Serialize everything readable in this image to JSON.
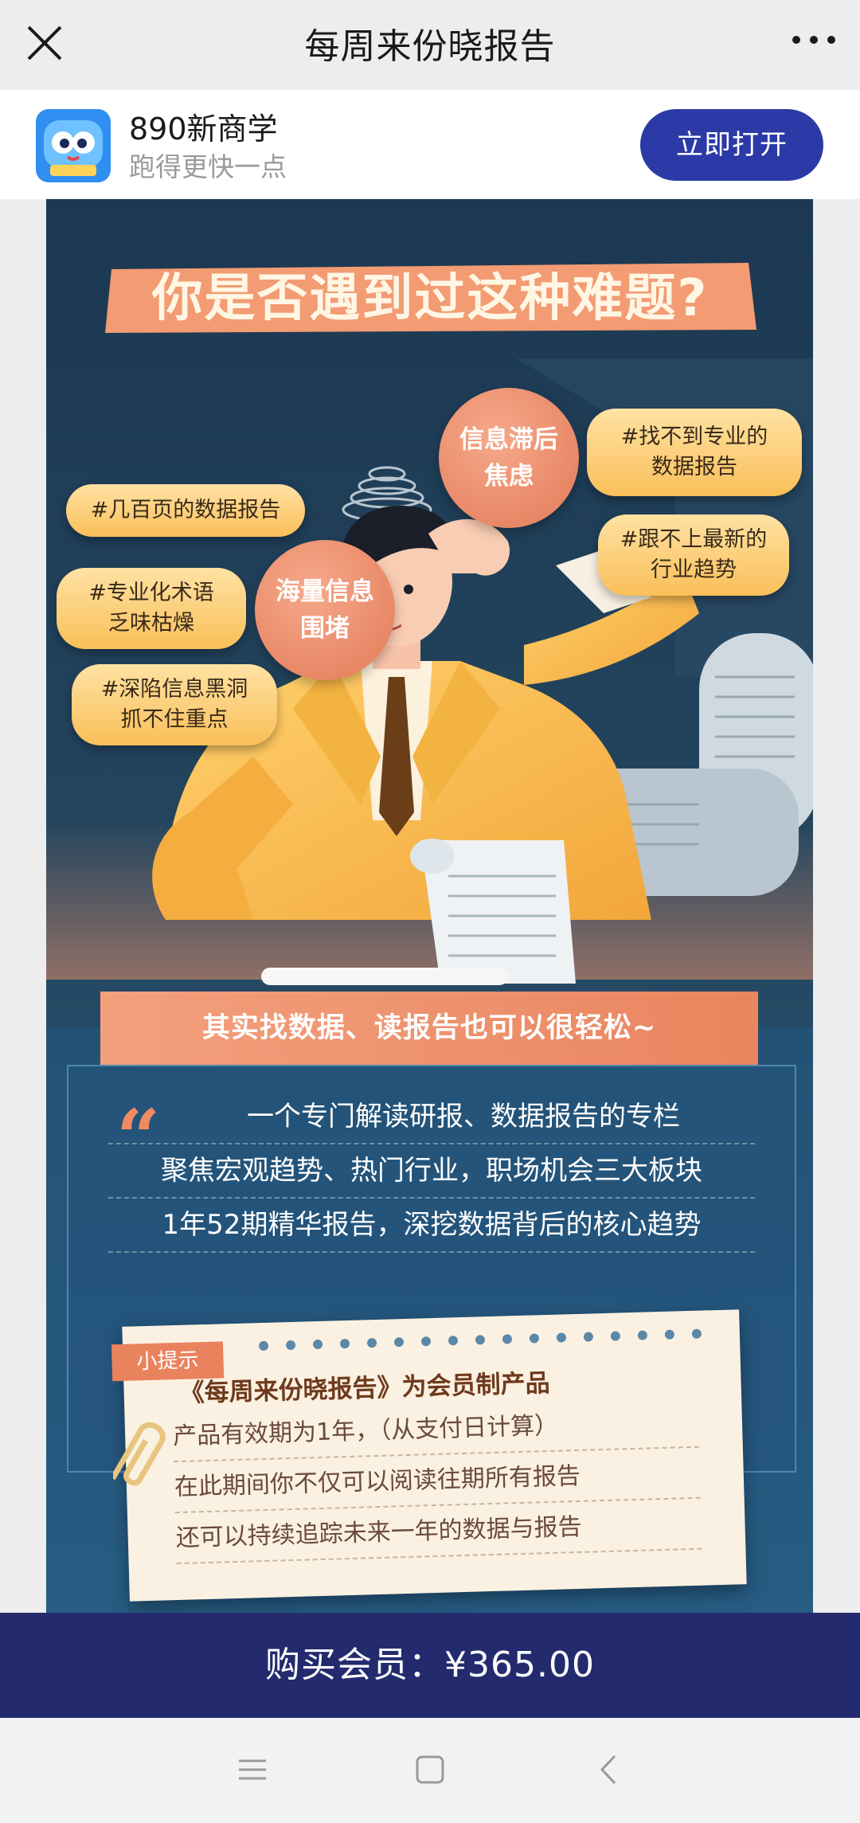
{
  "topbar": {
    "title": "每周来份晓报告"
  },
  "app": {
    "name": "890新商学",
    "slogan": "跑得更快一点",
    "open_label": "立即打开"
  },
  "poster": {
    "headline": "你是否遇到过这种难题?",
    "bubbles": [
      {
        "line1": "信息滞后",
        "line2": "焦虑"
      },
      {
        "line1": "海量信息",
        "line2": "围堵"
      }
    ],
    "tags": [
      {
        "line1": "#找不到专业的",
        "line2": "数据报告"
      },
      {
        "line1": "#几百页的数据报告",
        "line2": ""
      },
      {
        "line1": "#跟不上最新的",
        "line2": "行业趋势"
      },
      {
        "line1": "#专业化术语",
        "line2": "乏味枯燥"
      },
      {
        "line1": "#深陷信息黑洞",
        "line2": "抓不住重点"
      }
    ],
    "ribbon": "其实找数据、读报告也可以很轻松~",
    "info": {
      "quote_mark": "“",
      "lines": [
        "一个专门解读研报、数据报告的专栏",
        "聚焦宏观趋势、热门行业，职场机会三大板块",
        "1年52期精华报告，深挖数据背后的核心趋势"
      ]
    },
    "note": {
      "hint": "小提示",
      "title": "《每周来份晓报告》为会员制产品",
      "lines": [
        "产品有效期为1年，（从支付日计算）",
        "在此期间你不仅可以阅读往期所有报告",
        "还可以持续追踪未来一年的数据与报告"
      ]
    }
  },
  "buy": {
    "label": "购买会员：¥365.00"
  },
  "colors": {
    "brand_blue": "#2b3aa6",
    "buy_bar": "#232b6e",
    "poster_bg": "#213e5a",
    "accent_orange": "#e9855f",
    "tag_yellow": "#f9bf59"
  }
}
